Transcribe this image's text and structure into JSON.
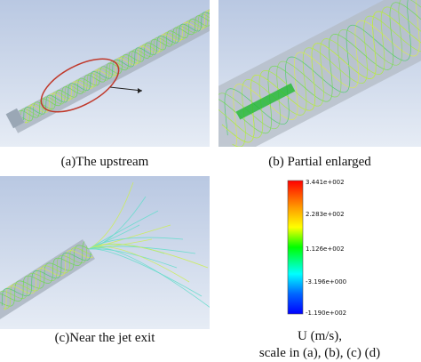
{
  "panels": [
    {
      "caption": "(a)The upstream"
    },
    {
      "caption": "(b) Partial enlarged"
    },
    {
      "caption": "(c)Near the jet exit"
    }
  ],
  "colorbar": {
    "labels": [
      "3.441e+002",
      "2.283e+002",
      "1.126e+002",
      "-3.196e+000",
      "-1.190e+002"
    ]
  },
  "legend_caption": {
    "lines": [
      "U (m/s),",
      "scale in (a), (b), (c) (d)"
    ]
  }
}
